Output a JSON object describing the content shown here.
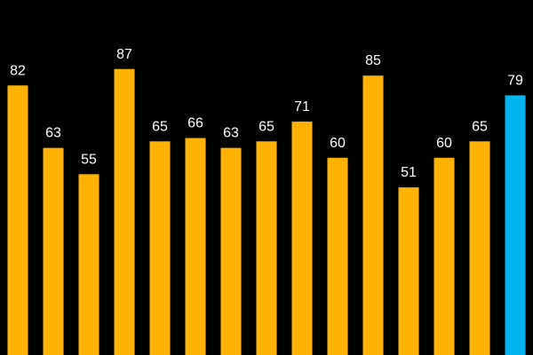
{
  "chart_data": {
    "type": "bar",
    "categories": [
      null,
      null,
      null,
      null,
      null,
      null,
      null,
      null,
      null,
      null,
      null,
      null,
      null,
      null,
      null
    ],
    "values": [
      82,
      63,
      55,
      87,
      65,
      66,
      63,
      65,
      71,
      60,
      85,
      51,
      60,
      65,
      79
    ],
    "colors": [
      "#FFB300",
      "#FFB300",
      "#FFB300",
      "#FFB300",
      "#FFB300",
      "#FFB300",
      "#FFB300",
      "#FFB300",
      "#FFB300",
      "#FFB300",
      "#FFB300",
      "#FFB300",
      "#FFB300",
      "#FFB300",
      "#00B4F0"
    ],
    "ylim": [
      0,
      108
    ]
  }
}
